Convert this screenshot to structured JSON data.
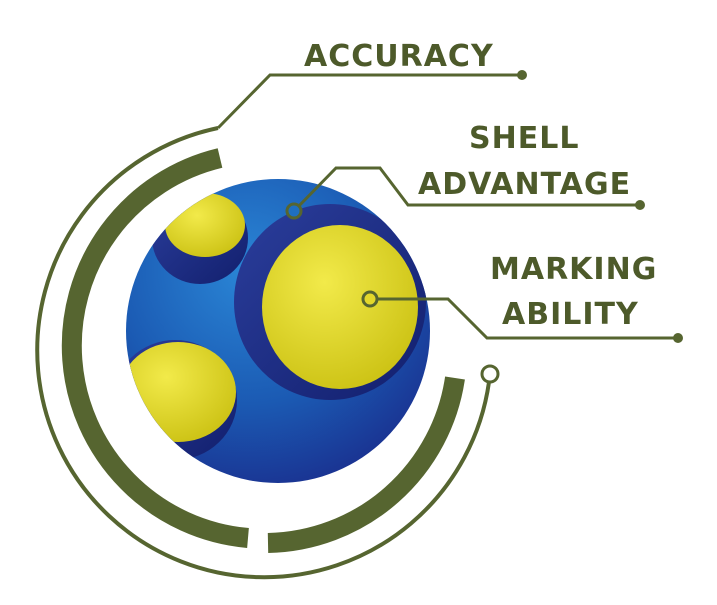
{
  "colors": {
    "olive": "#566530",
    "label_green": "#4d5a2a",
    "ball_blue": "#1f6fc0",
    "ball_dark_blue": "#1a2f8f",
    "ball_yellow": "#e3d82a"
  },
  "labels": {
    "accuracy": "ACCURACY",
    "shell": "SHELL",
    "advantage": "ADVANTAGE",
    "marking": "MARKING",
    "ability": "ABILITY"
  }
}
